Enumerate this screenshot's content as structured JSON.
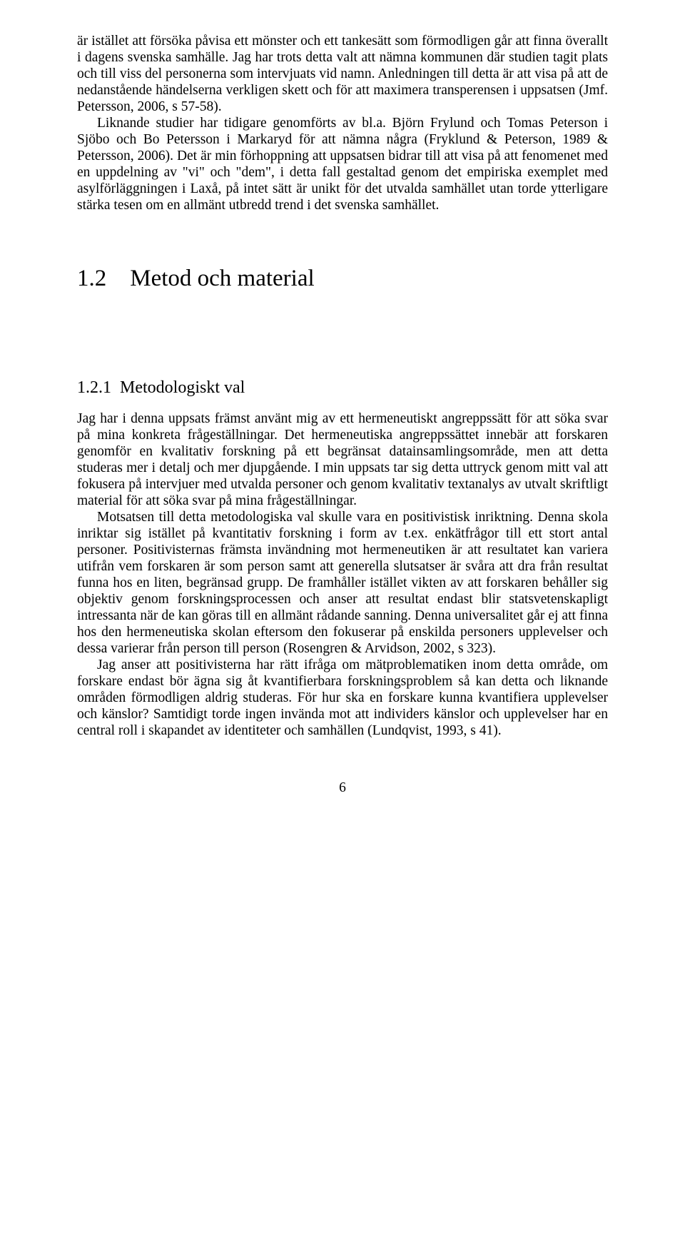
{
  "para1": "är istället att försöka påvisa ett mönster och ett tankesätt som förmodligen går att finna överallt i dagens svenska samhälle. Jag har trots detta valt att nämna kommunen där studien tagit plats och till viss del personerna som intervjuats vid namn. Anledningen till detta är att visa på att de nedanstående händelserna verkligen skett och för att maximera transperensen i uppsatsen (Jmf. Petersson, 2006, s 57-58).",
  "para2": "Liknande studier har tidigare genomförts av bl.a. Björn Frylund och Tomas Peterson i Sjöbo och Bo Petersson i Markaryd för att nämna några (Fryklund & Peterson, 1989 & Petersson, 2006). Det är min förhoppning att uppsatsen bidrar till att visa på att fenomenet med en uppdelning av \"vi\" och \"dem\", i detta fall gestaltad genom det empiriska exemplet med asylförläggningen i Laxå, på intet sätt är unikt för det utvalda samhället utan torde ytterligare stärka tesen om en allmänt utbredd trend i det svenska samhället.",
  "h2": "1.2 Metod och material",
  "h3": "1.2.1 Metodologiskt val",
  "para3": "Jag har i denna uppsats främst använt mig av ett hermeneutiskt angreppssätt för att söka svar på mina konkreta frågeställningar. Det hermeneutiska angreppssättet innebär att forskaren genomför en kvalitativ forskning på ett begränsat datainsamlingsområde, men att detta studeras mer i detalj och mer djupgående. I min uppsats tar sig detta uttryck genom mitt val att fokusera på intervjuer med utvalda personer och genom kvalitativ textanalys av utvalt skriftligt material för att söka svar på mina frågeställningar.",
  "para4": "Motsatsen till detta metodologiska val skulle vara en positivistisk inriktning. Denna skola inriktar sig istället på kvantitativ forskning i form av t.ex. enkätfrågor till ett stort antal personer. Positivisternas främsta invändning mot hermeneutiken är att resultatet kan variera utifrån vem forskaren är som person samt att generella slutsatser är svåra att dra från resultat funna hos en liten, begränsad grupp. De framhåller istället vikten av att forskaren behåller sig objektiv genom forskningsprocessen och anser att resultat endast blir statsvetenskapligt intressanta när de kan göras till en allmänt rådande sanning. Denna universalitet går ej att finna hos den hermeneutiska skolan eftersom den fokuserar på enskilda personers upplevelser och dessa varierar från person till person (Rosengren & Arvidson, 2002, s 323).",
  "para5": "Jag anser att positivisterna har rätt ifråga om mätproblematiken inom detta område, om forskare endast bör ägna sig åt kvantifierbara forskningsproblem så kan detta och liknande områden förmodligen aldrig studeras. För hur ska en forskare kunna kvantifiera upplevelser och känslor? Samtidigt torde ingen invända mot att individers känslor och upplevelser har en central roll i skapandet av identiteter och samhällen (Lundqvist, 1993, s 41).",
  "pagenum": "6"
}
